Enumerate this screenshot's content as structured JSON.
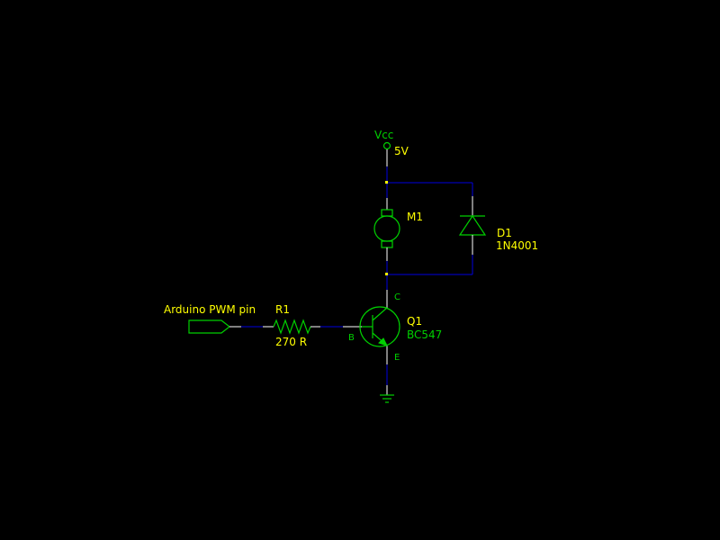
{
  "colors": {
    "background": "#000000",
    "wire": "#0000e0",
    "symbol": "#00d000",
    "lead": "#ffffff",
    "reference_text": "#ffff00",
    "value_text": "#00d000",
    "junction": "#ffff00"
  },
  "power": {
    "net_name": "Vcc",
    "value": "5V"
  },
  "motor": {
    "ref": "M1"
  },
  "diode": {
    "ref": "D1",
    "value": "1N4001"
  },
  "transistor": {
    "ref": "Q1",
    "value": "BC547",
    "pins": {
      "collector": "C",
      "base": "B",
      "emitter": "E"
    }
  },
  "resistor": {
    "ref": "R1",
    "value": "270 R"
  },
  "input": {
    "label": "Arduino PWM pin"
  },
  "icons": [
    "vcc-terminal-icon",
    "dc-motor-icon",
    "diode-icon",
    "npn-transistor-icon",
    "resistor-icon",
    "input-port-icon",
    "ground-icon"
  ]
}
